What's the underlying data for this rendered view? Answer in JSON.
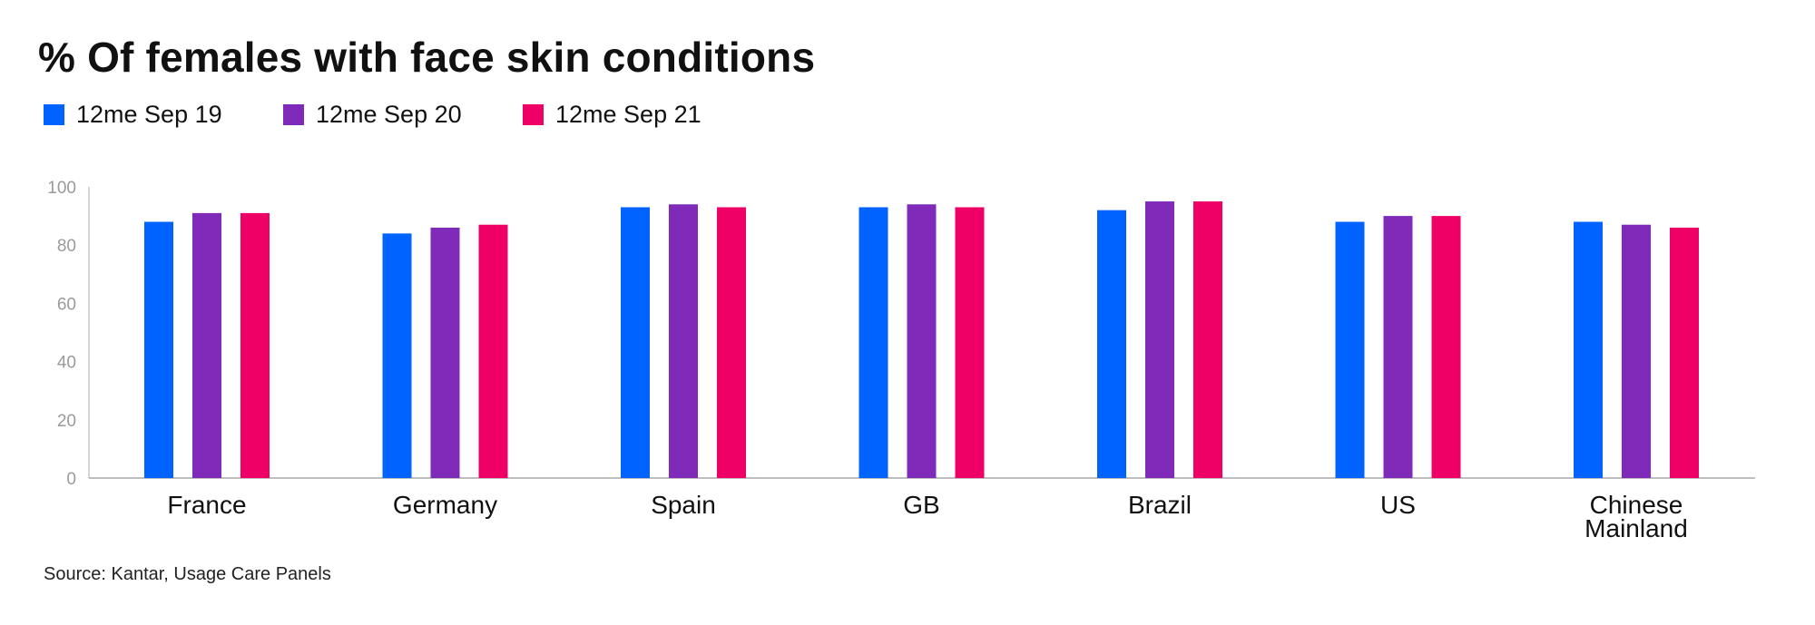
{
  "title": "% Of females with face skin conditions",
  "source": "Source: Kantar, Usage Care Panels",
  "chart_data": {
    "type": "bar",
    "title": "% Of females with face skin conditions",
    "categories": [
      [
        "France"
      ],
      [
        "Germany"
      ],
      [
        "Spain"
      ],
      [
        "GB"
      ],
      [
        "Brazil"
      ],
      [
        "US"
      ],
      [
        "Chinese",
        "Mainland"
      ]
    ],
    "series": [
      {
        "name": "12me Sep 19",
        "color": "#0063ff",
        "values": [
          88,
          84,
          93,
          93,
          92,
          88,
          88
        ]
      },
      {
        "name": "12me Sep 20",
        "color": "#7f2ab8",
        "values": [
          91,
          86,
          94,
          94,
          95,
          90,
          87
        ]
      },
      {
        "name": "12me Sep 21",
        "color": "#ee0066",
        "values": [
          91,
          87,
          93,
          93,
          95,
          90,
          86
        ]
      }
    ],
    "ylim": [
      0,
      100
    ],
    "yticks": [
      0,
      20,
      40,
      60,
      80,
      100
    ],
    "grid": false,
    "legend": "top-left"
  }
}
